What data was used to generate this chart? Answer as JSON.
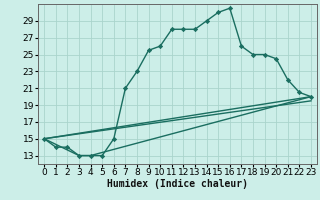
{
  "title": "",
  "xlabel": "Humidex (Indice chaleur)",
  "bg_color": "#cceee8",
  "grid_color": "#aad4cc",
  "line_color": "#1a6e60",
  "xlim": [
    -0.5,
    23.5
  ],
  "ylim": [
    12.0,
    31.0
  ],
  "xticks": [
    0,
    1,
    2,
    3,
    4,
    5,
    6,
    7,
    8,
    9,
    10,
    11,
    12,
    13,
    14,
    15,
    16,
    17,
    18,
    19,
    20,
    21,
    22,
    23
  ],
  "yticks": [
    13,
    15,
    17,
    19,
    21,
    23,
    25,
    27,
    29
  ],
  "line1_x": [
    0,
    1,
    2,
    3,
    4,
    5,
    6,
    7,
    8,
    9,
    10,
    11,
    12,
    13,
    14,
    15,
    16,
    17,
    18,
    19,
    20,
    21,
    22,
    23
  ],
  "line1_y": [
    15,
    14,
    14,
    13,
    13,
    13,
    15,
    21,
    23,
    25.5,
    26,
    28,
    28,
    28,
    29,
    30,
    30.5,
    26,
    25,
    25,
    24.5,
    22,
    20.5,
    20
  ],
  "line2_x": [
    0,
    3,
    4,
    23
  ],
  "line2_y": [
    15,
    13,
    13,
    20
  ],
  "line3_x": [
    0,
    23
  ],
  "line3_y": [
    15,
    20
  ],
  "line4_x": [
    0,
    23
  ],
  "line4_y": [
    15,
    19.5
  ],
  "marker_style": "D",
  "marker_size": 2.2,
  "line_width": 1.0,
  "font_size_label": 7,
  "font_size_tick": 6.5
}
